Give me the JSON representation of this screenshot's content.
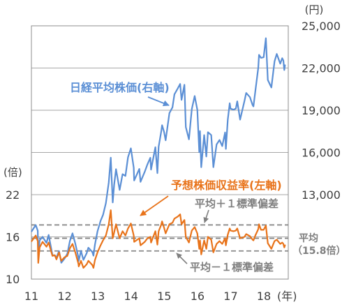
{
  "chart_data": {
    "type": "line",
    "xlim": [
      "2011-01-01",
      "2018-09-26"
    ],
    "x_ticks": [
      "11",
      "12",
      "13",
      "14",
      "15",
      "16",
      "17",
      "18"
    ],
    "x_unit": "(年)",
    "x": [
      "2011-01-04",
      "2011-02-18",
      "2011-03-10",
      "2011-03-15",
      "2011-03-31",
      "2011-05-02",
      "2011-06-15",
      "2011-07-08",
      "2011-08-19",
      "2011-09-15",
      "2011-10-03",
      "2011-10-31",
      "2011-11-25",
      "2011-12-30",
      "2012-01-31",
      "2012-02-29",
      "2012-03-27",
      "2012-04-27",
      "2012-05-31",
      "2012-06-04",
      "2012-06-29",
      "2012-07-25",
      "2012-08-31",
      "2012-09-19",
      "2012-10-31",
      "2012-11-14",
      "2012-11-30",
      "2012-12-28",
      "2013-01-31",
      "2013-02-28",
      "2013-03-29",
      "2013-04-30",
      "2013-05-22",
      "2013-06-13",
      "2013-06-28",
      "2013-07-18",
      "2013-08-28",
      "2013-09-30",
      "2013-10-31",
      "2013-11-29",
      "2013-12-30",
      "2014-01-31",
      "2014-02-05",
      "2014-03-31",
      "2014-04-14",
      "2014-05-30",
      "2014-06-30",
      "2014-07-31",
      "2014-08-08",
      "2014-09-25",
      "2014-10-17",
      "2014-10-31",
      "2014-11-28",
      "2014-12-08",
      "2014-12-30",
      "2015-01-16",
      "2015-02-27",
      "2015-03-31",
      "2015-04-22",
      "2015-05-29",
      "2015-06-24",
      "2015-07-09",
      "2015-08-10",
      "2015-08-25",
      "2015-09-29",
      "2015-10-30",
      "2015-12-01",
      "2015-12-30",
      "2016-01-21",
      "2016-01-29",
      "2016-02-12",
      "2016-03-14",
      "2016-04-07",
      "2016-04-25",
      "2016-05-31",
      "2016-06-24",
      "2016-07-29",
      "2016-08-31",
      "2016-09-30",
      "2016-10-31",
      "2016-11-09",
      "2016-11-30",
      "2016-12-21",
      "2016-12-30",
      "2017-01-31",
      "2017-02-28",
      "2017-03-13",
      "2017-04-14",
      "2017-05-31",
      "2017-06-20",
      "2017-07-31",
      "2017-08-29",
      "2017-09-08",
      "2017-09-29",
      "2017-10-31",
      "2017-11-09",
      "2017-11-30",
      "2017-12-29",
      "2018-01-23",
      "2018-02-14",
      "2018-03-23",
      "2018-04-27",
      "2018-05-21",
      "2018-06-29",
      "2018-07-20",
      "2018-08-03",
      "2018-08-13",
      "2018-08-20"
    ],
    "y_left": {
      "unit": "(倍)",
      "ticks": [
        "10",
        "16",
        "22"
      ],
      "range": [
        10,
        46
      ]
    },
    "y_right": {
      "unit": "(円)",
      "ticks": [
        "13,000",
        "16,000",
        "19,000",
        "22,000",
        "25,000"
      ],
      "range": [
        7000,
        25000
      ]
    },
    "grid": true,
    "grid_color": "#a6a6a6",
    "reference_color": "#808080",
    "series": [
      {
        "name": "日経平均株価(右軸)",
        "right_axis": true,
        "color": "#5b8fd5",
        "values": [
          10398,
          10842,
          10434,
          8605,
          9755,
          10004,
          9574,
          10137,
          8719,
          8668,
          8545,
          8988,
          8160,
          8455,
          8803,
          9723,
          10255,
          9520,
          8542,
          8295,
          9006,
          8366,
          8840,
          9232,
          8928,
          8665,
          9446,
          10395,
          11139,
          11559,
          12398,
          13861,
          15627,
          12445,
          13677,
          14808,
          13338,
          14456,
          14327,
          15662,
          16291,
          14915,
          14008,
          14828,
          13910,
          14632,
          15162,
          15621,
          14778,
          16374,
          14532,
          16414,
          17460,
          17935,
          17451,
          16864,
          18798,
          19207,
          20133,
          20563,
          20868,
          19737,
          20808,
          17806,
          16931,
          19083,
          20012,
          19034,
          16017,
          17518,
          14952,
          17233,
          15713,
          17439,
          17235,
          14952,
          16569,
          16887,
          16450,
          17425,
          16251,
          18308,
          19494,
          19114,
          19041,
          19119,
          19633,
          18335,
          19651,
          20230,
          19925,
          19362,
          19275,
          20356,
          22012,
          22937,
          22725,
          22765,
          24124,
          21154,
          20617,
          22468,
          23002,
          22305,
          22698,
          22525,
          21857,
          22199
        ]
      },
      {
        "name": "予想株価収益率(左軸)",
        "right_axis": false,
        "color": "#e8731a",
        "values": [
          15.4,
          16.2,
          15.4,
          12.3,
          14.5,
          15.3,
          14.6,
          15.2,
          13.3,
          13.4,
          12.8,
          13.8,
          12.6,
          13.1,
          13.3,
          14.4,
          15.0,
          13.8,
          12.2,
          11.8,
          12.6,
          11.6,
          12.1,
          12.6,
          12.0,
          11.6,
          12.7,
          13.8,
          14.8,
          15.5,
          16.2,
          17.8,
          19.8,
          15.8,
          16.6,
          17.8,
          15.8,
          16.8,
          16.2,
          17.2,
          17.9,
          16.2,
          15.3,
          15.8,
          14.8,
          15.3,
          15.8,
          16.0,
          15.2,
          16.8,
          14.9,
          16.8,
          17.7,
          18.2,
          17.3,
          16.5,
          17.8,
          18.0,
          18.6,
          18.9,
          19.2,
          17.8,
          18.4,
          16.0,
          15.2,
          16.9,
          17.4,
          16.5,
          14.3,
          15.5,
          13.5,
          15.5,
          14.3,
          16.0,
          15.6,
          13.8,
          15.0,
          15.4,
          15.0,
          15.8,
          14.8,
          16.3,
          17.2,
          16.9,
          16.8,
          16.9,
          17.2,
          15.8,
          16.0,
          16.4,
          16.1,
          15.6,
          15.5,
          16.2,
          17.1,
          17.8,
          17.0,
          17.0,
          17.6,
          15.1,
          14.3,
          15.4,
          15.6,
          15.0,
          15.2,
          15.0,
          14.5,
          14.8
        ]
      }
    ],
    "reference_lines": [
      {
        "label": "平均＋１標準偏差",
        "value": 17.7
      },
      {
        "label": "平均",
        "value_label": "（15.8倍）",
        "value": 15.8
      },
      {
        "label": "平均－１標準偏差",
        "value": 14.0
      }
    ]
  }
}
